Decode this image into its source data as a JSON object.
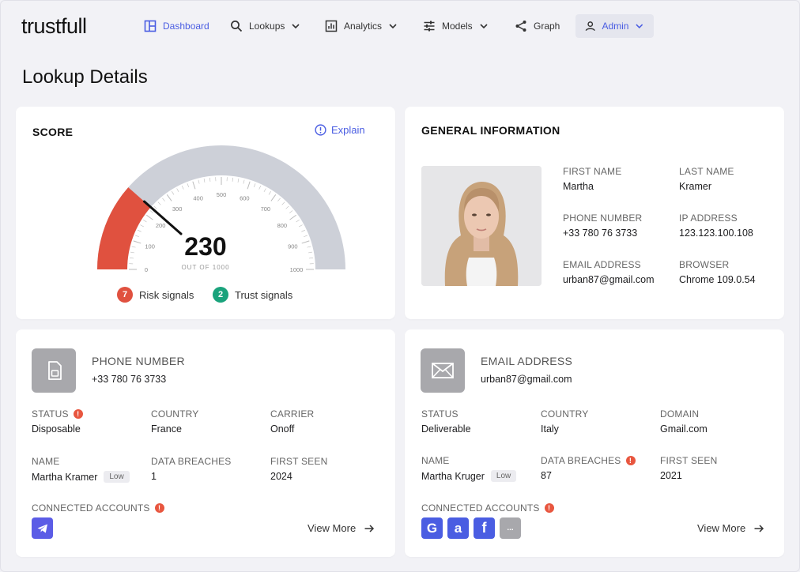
{
  "brand": "trustfull",
  "nav": {
    "dashboard": "Dashboard",
    "lookups": "Lookups",
    "analytics": "Analytics",
    "models": "Models",
    "graph": "Graph",
    "admin": "Admin"
  },
  "page_title": "Lookup Details",
  "score": {
    "title": "SCORE",
    "explain": "Explain",
    "value": "230",
    "out_of": "OUT OF 1000",
    "value_fraction": 0.23,
    "ticks": [
      "0",
      "100",
      "200",
      "300",
      "400",
      "500",
      "600",
      "700",
      "800",
      "900",
      "1000"
    ],
    "risk_count": "7",
    "risk_label": "Risk signals",
    "trust_count": "2",
    "trust_label": "Trust signals",
    "colors": {
      "risk": "#e0513f",
      "track": "#cdd0d8",
      "trust": "#1aa37c",
      "needle": "#111111"
    }
  },
  "general": {
    "title": "GENERAL INFORMATION",
    "first_name_label": "FIRST NAME",
    "first_name": "Martha",
    "last_name_label": "LAST NAME",
    "last_name": "Kramer",
    "phone_label": "PHONE NUMBER",
    "phone": "+33 780 76 3733",
    "ip_label": "IP ADDRESS",
    "ip": "123.123.100.108",
    "email_label": "EMAIL ADDRESS",
    "email": "urban87@gmail.com",
    "browser_label": "BROWSER",
    "browser": "Chrome 109.0.54"
  },
  "phone_card": {
    "header_label": "PHONE NUMBER",
    "header_value": "+33 780 76 3733",
    "status_label": "STATUS",
    "status": "Disposable",
    "country_label": "COUNTRY",
    "country": "France",
    "carrier_label": "CARRIER",
    "carrier": "Onoff",
    "name_label": "NAME",
    "name": "Martha Kramer",
    "name_badge": "Low",
    "breaches_label": "DATA BREACHES",
    "breaches": "1",
    "first_seen_label": "FIRST SEEN",
    "first_seen": "2024",
    "connected_label": "CONNECTED ACCOUNTS",
    "view_more": "View More",
    "warn_glyph": "!"
  },
  "email_card": {
    "header_label": "EMAIL ADDRESS",
    "header_value": "urban87@gmail.com",
    "status_label": "STATUS",
    "status": "Deliverable",
    "country_label": "COUNTRY",
    "country": "Italy",
    "domain_label": "DOMAIN",
    "domain": "Gmail.com",
    "name_label": "NAME",
    "name": "Martha Kruger",
    "name_badge": "Low",
    "breaches_label": "DATA BREACHES",
    "breaches": "87",
    "first_seen_label": "FIRST SEEN",
    "first_seen": "2021",
    "connected_label": "CONNECTED ACCOUNTS",
    "view_more": "View More",
    "more_glyph": "...",
    "google_glyph": "G",
    "amazon_glyph": "a",
    "facebook_glyph": "f",
    "warn_glyph": "!"
  }
}
